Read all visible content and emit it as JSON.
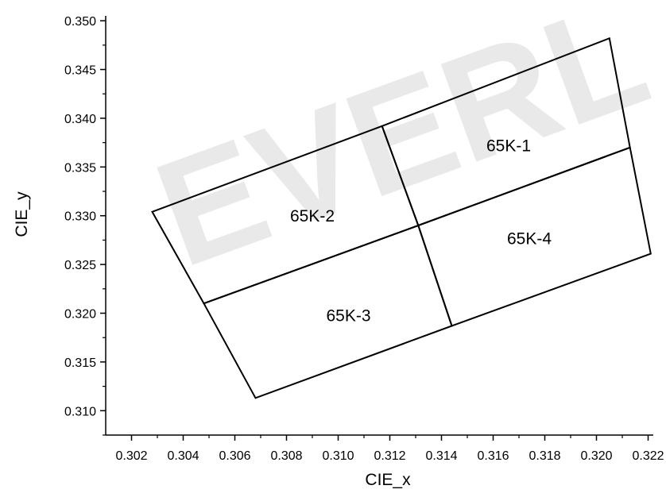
{
  "chart_data": {
    "type": "scatter",
    "subtype": "CIE chromaticity bin regions",
    "xlabel": "CIE_x",
    "ylabel": "CIE_y",
    "xlim": [
      0.301,
      0.3222
    ],
    "ylim": [
      0.3075,
      0.3505
    ],
    "x_ticks": [
      "0.302",
      "0.304",
      "0.306",
      "0.308",
      "0.310",
      "0.312",
      "0.314",
      "0.316",
      "0.318",
      "0.320",
      "0.322"
    ],
    "y_ticks": [
      "0.310",
      "0.315",
      "0.320",
      "0.325",
      "0.330",
      "0.335",
      "0.340",
      "0.345",
      "0.350"
    ],
    "grid": false,
    "watermark": "EVERL",
    "regions": [
      {
        "name": "65K-1",
        "points": [
          [
            0.3117,
            0.3392
          ],
          [
            0.3205,
            0.3482
          ],
          [
            0.3213,
            0.337
          ],
          [
            0.3131,
            0.329
          ]
        ]
      },
      {
        "name": "65K-2",
        "points": [
          [
            0.3028,
            0.3304
          ],
          [
            0.3117,
            0.3392
          ],
          [
            0.3131,
            0.329
          ],
          [
            0.3048,
            0.321
          ]
        ]
      },
      {
        "name": "65K-3",
        "points": [
          [
            0.3048,
            0.321
          ],
          [
            0.3131,
            0.329
          ],
          [
            0.3144,
            0.3187
          ],
          [
            0.3068,
            0.3113
          ]
        ]
      },
      {
        "name": "65K-4",
        "points": [
          [
            0.3131,
            0.329
          ],
          [
            0.3213,
            0.337
          ],
          [
            0.3221,
            0.3261
          ],
          [
            0.3144,
            0.3187
          ]
        ]
      }
    ],
    "labels": [
      {
        "text": "65K-1",
        "x": 0.3166,
        "y": 0.3366
      },
      {
        "text": "65K-2",
        "x": 0.309,
        "y": 0.3294
      },
      {
        "text": "65K-3",
        "x": 0.3104,
        "y": 0.3192
      },
      {
        "text": "65K-4",
        "x": 0.3174,
        "y": 0.3271
      }
    ]
  }
}
